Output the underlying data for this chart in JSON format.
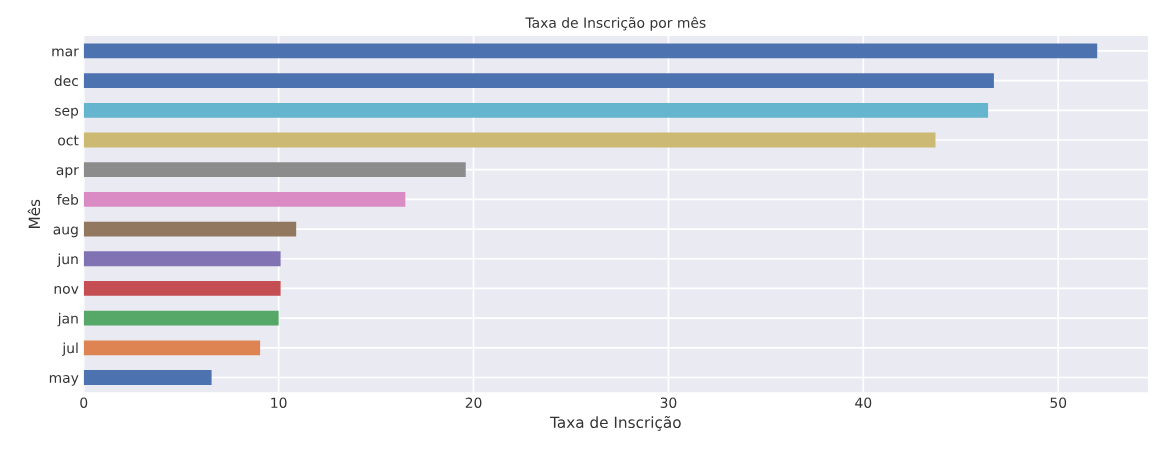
{
  "chart_data": {
    "type": "bar",
    "orientation": "horizontal",
    "title": "Taxa de Inscrição por mês",
    "xlabel": "Taxa de Inscrição",
    "ylabel": "Mês",
    "categories": [
      "mar",
      "dec",
      "sep",
      "oct",
      "apr",
      "feb",
      "aug",
      "jun",
      "nov",
      "jan",
      "jul",
      "may"
    ],
    "values": [
      52.0,
      46.7,
      46.4,
      43.7,
      19.6,
      16.5,
      10.9,
      10.1,
      10.1,
      10.0,
      9.05,
      6.56
    ],
    "colors": [
      "#4c72b0",
      "#4c72b0",
      "#64b5cd",
      "#ccb974",
      "#8c8c8c",
      "#da8bc3",
      "#937860",
      "#8172b3",
      "#c44e52",
      "#55a868",
      "#dd8452",
      "#4c72b0"
    ],
    "xlim": [
      0,
      54.6
    ],
    "xticks": [
      0,
      10,
      20,
      30,
      40,
      50
    ],
    "grid": true
  }
}
